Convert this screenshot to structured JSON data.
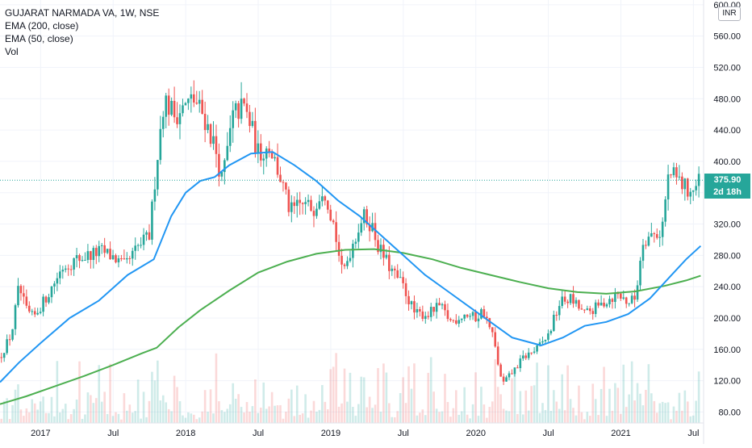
{
  "legend": {
    "symbol": "GUJARAT NARMADA VA, 1W, NSE",
    "ema200": "EMA (200, close)",
    "ema50": "EMA (50, close)",
    "vol": "Vol"
  },
  "currency_badge": "INR",
  "last_price": {
    "value": "375.90",
    "countdown": "2d 18h"
  },
  "colors": {
    "up": "#26a69a",
    "down": "#ef5350",
    "ema50": "#2196f3",
    "ema200": "#4caf50",
    "price_tag": "#26a69a"
  },
  "chart_data": {
    "type": "line",
    "title": "",
    "ylabel": "",
    "xlabel": "",
    "y_ticks": [
      80,
      120,
      160,
      200,
      240,
      280,
      320,
      360,
      400,
      440,
      480,
      520,
      560,
      600
    ],
    "y_tick_labels": [
      "80.00",
      "120.00",
      "160.00",
      "200.00",
      "240.00",
      "280.00",
      "320.00",
      "360.00",
      "400.00",
      "440.00",
      "480.00",
      "520.00",
      "560.00",
      "600.00"
    ],
    "x_ticks": [
      {
        "label": "2017",
        "t": 2017.0
      },
      {
        "label": "Jul",
        "t": 2017.5
      },
      {
        "label": "2018",
        "t": 2018.0
      },
      {
        "label": "Jul",
        "t": 2018.5
      },
      {
        "label": "2019",
        "t": 2019.0
      },
      {
        "label": "Jul",
        "t": 2019.5
      },
      {
        "label": "2020",
        "t": 2020.0
      },
      {
        "label": "Jul",
        "t": 2020.5
      },
      {
        "label": "2021",
        "t": 2021.0
      },
      {
        "label": "Jul",
        "t": 2021.5
      }
    ],
    "xlim": [
      2016.72,
      2021.57
    ],
    "ylim": [
      66,
      606
    ],
    "grid": true,
    "price_key_points": [
      [
        2016.72,
        150
      ],
      [
        2016.8,
        180
      ],
      [
        2016.85,
        240
      ],
      [
        2016.9,
        210
      ],
      [
        2016.95,
        200
      ],
      [
        2017.05,
        230
      ],
      [
        2017.15,
        265
      ],
      [
        2017.25,
        275
      ],
      [
        2017.33,
        280
      ],
      [
        2017.42,
        285
      ],
      [
        2017.5,
        278
      ],
      [
        2017.58,
        265
      ],
      [
        2017.67,
        290
      ],
      [
        2017.75,
        305
      ],
      [
        2017.8,
        400
      ],
      [
        2017.85,
        480
      ],
      [
        2017.92,
        460
      ],
      [
        2018.0,
        470
      ],
      [
        2018.05,
        480
      ],
      [
        2018.12,
        460
      ],
      [
        2018.2,
        420
      ],
      [
        2018.25,
        375
      ],
      [
        2018.33,
        460
      ],
      [
        2018.4,
        470
      ],
      [
        2018.45,
        445
      ],
      [
        2018.5,
        410
      ],
      [
        2018.58,
        420
      ],
      [
        2018.65,
        380
      ],
      [
        2018.72,
        335
      ],
      [
        2018.8,
        345
      ],
      [
        2018.88,
        340
      ],
      [
        2018.95,
        370
      ],
      [
        2019.02,
        320
      ],
      [
        2019.08,
        255
      ],
      [
        2019.15,
        295
      ],
      [
        2019.22,
        330
      ],
      [
        2019.28,
        320
      ],
      [
        2019.33,
        290
      ],
      [
        2019.42,
        260
      ],
      [
        2019.5,
        240
      ],
      [
        2019.58,
        205
      ],
      [
        2019.67,
        205
      ],
      [
        2019.75,
        215
      ],
      [
        2019.83,
        195
      ],
      [
        2019.92,
        205
      ],
      [
        2020.0,
        200
      ],
      [
        2020.05,
        210
      ],
      [
        2020.12,
        175
      ],
      [
        2020.18,
        115
      ],
      [
        2020.25,
        130
      ],
      [
        2020.33,
        150
      ],
      [
        2020.42,
        160
      ],
      [
        2020.5,
        178
      ],
      [
        2020.58,
        220
      ],
      [
        2020.65,
        225
      ],
      [
        2020.75,
        205
      ],
      [
        2020.85,
        215
      ],
      [
        2020.92,
        225
      ],
      [
        2020.98,
        230
      ],
      [
        2021.05,
        220
      ],
      [
        2021.1,
        225
      ],
      [
        2021.15,
        300
      ],
      [
        2021.2,
        305
      ],
      [
        2021.28,
        310
      ],
      [
        2021.33,
        385
      ],
      [
        2021.4,
        375
      ],
      [
        2021.45,
        365
      ],
      [
        2021.5,
        363
      ],
      [
        2021.55,
        375.9
      ]
    ],
    "ema50_points": [
      [
        2016.72,
        118
      ],
      [
        2016.85,
        143
      ],
      [
        2017.0,
        168
      ],
      [
        2017.2,
        200
      ],
      [
        2017.4,
        222
      ],
      [
        2017.6,
        255
      ],
      [
        2017.78,
        275
      ],
      [
        2017.9,
        330
      ],
      [
        2018.0,
        360
      ],
      [
        2018.1,
        375
      ],
      [
        2018.2,
        380
      ],
      [
        2018.3,
        395
      ],
      [
        2018.45,
        410
      ],
      [
        2018.6,
        412
      ],
      [
        2018.75,
        395
      ],
      [
        2018.9,
        375
      ],
      [
        2019.05,
        350
      ],
      [
        2019.2,
        330
      ],
      [
        2019.35,
        305
      ],
      [
        2019.5,
        280
      ],
      [
        2019.65,
        255
      ],
      [
        2019.8,
        235
      ],
      [
        2019.95,
        215
      ],
      [
        2020.1,
        195
      ],
      [
        2020.25,
        175
      ],
      [
        2020.45,
        165
      ],
      [
        2020.6,
        175
      ],
      [
        2020.75,
        190
      ],
      [
        2020.9,
        195
      ],
      [
        2021.05,
        205
      ],
      [
        2021.2,
        225
      ],
      [
        2021.35,
        255
      ],
      [
        2021.45,
        275
      ],
      [
        2021.55,
        292
      ]
    ],
    "ema200_points": [
      [
        2016.72,
        90
      ],
      [
        2016.9,
        100
      ],
      [
        2017.1,
        113
      ],
      [
        2017.3,
        126
      ],
      [
        2017.5,
        140
      ],
      [
        2017.7,
        155
      ],
      [
        2017.8,
        162
      ],
      [
        2017.95,
        188
      ],
      [
        2018.1,
        210
      ],
      [
        2018.3,
        235
      ],
      [
        2018.5,
        258
      ],
      [
        2018.7,
        272
      ],
      [
        2018.9,
        282
      ],
      [
        2019.1,
        287
      ],
      [
        2019.3,
        288
      ],
      [
        2019.5,
        283
      ],
      [
        2019.7,
        275
      ],
      [
        2019.9,
        264
      ],
      [
        2020.1,
        255
      ],
      [
        2020.3,
        246
      ],
      [
        2020.5,
        238
      ],
      [
        2020.7,
        233
      ],
      [
        2020.9,
        231
      ],
      [
        2021.1,
        234
      ],
      [
        2021.3,
        241
      ],
      [
        2021.45,
        248
      ],
      [
        2021.55,
        254
      ]
    ]
  }
}
